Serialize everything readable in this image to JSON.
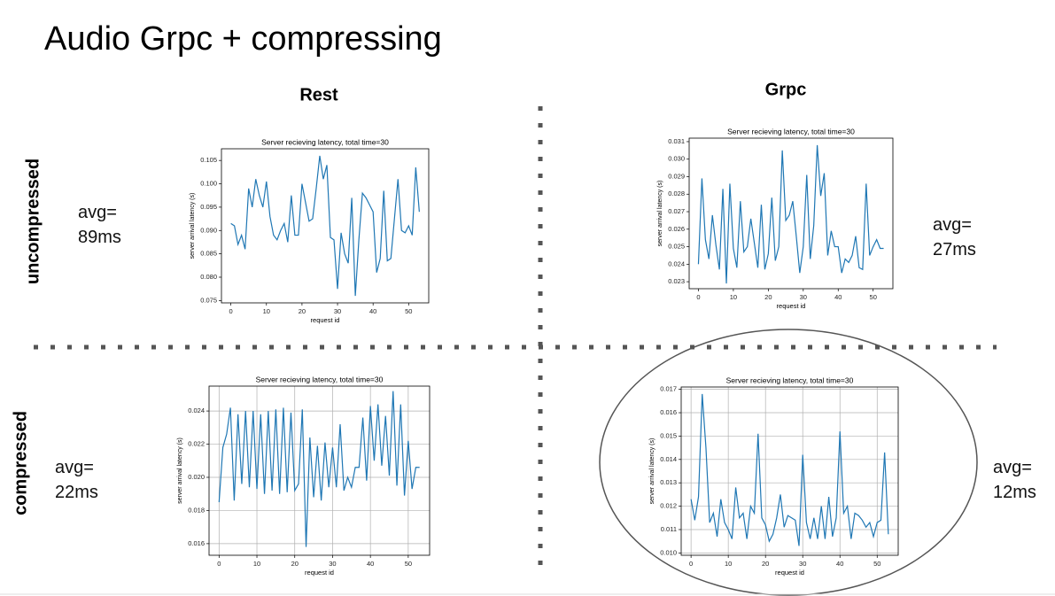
{
  "slide": {
    "title": "Audio Grpc + compressing",
    "columns": [
      "Rest",
      "Grpc"
    ],
    "rows": [
      "uncompressed",
      "compressed"
    ],
    "averages": [
      "avg= 89ms",
      "avg= 27ms",
      "avg= 22ms",
      "avg= 12ms"
    ]
  },
  "chart_data": [
    {
      "type": "line",
      "title": "Server recieving latency, total time=30",
      "xlabel": "request id",
      "ylabel": "server arrival latency (s)",
      "color": "#1f77b4",
      "grid": false,
      "x": [
        0,
        1,
        2,
        3,
        4,
        5,
        6,
        7,
        8,
        9,
        10,
        11,
        12,
        13,
        14,
        15,
        16,
        17,
        18,
        19,
        20,
        21,
        22,
        23,
        24,
        25,
        26,
        27,
        28,
        29,
        30,
        31,
        32,
        33,
        34,
        35,
        36,
        37,
        38,
        39,
        40,
        41,
        42,
        43,
        44,
        45,
        46,
        47,
        48,
        49,
        50,
        51,
        52,
        53
      ],
      "values": [
        0.0915,
        0.091,
        0.087,
        0.089,
        0.086,
        0.099,
        0.095,
        0.101,
        0.0975,
        0.095,
        0.1005,
        0.093,
        0.089,
        0.088,
        0.09,
        0.0915,
        0.0875,
        0.0975,
        0.089,
        0.089,
        0.1,
        0.096,
        0.092,
        0.0925,
        0.099,
        0.106,
        0.101,
        0.104,
        0.0885,
        0.088,
        0.0775,
        0.0895,
        0.085,
        0.083,
        0.097,
        0.076,
        0.088,
        0.098,
        0.097,
        0.0955,
        0.094,
        0.081,
        0.084,
        0.0985,
        0.0835,
        0.084,
        0.0925,
        0.101,
        0.09,
        0.0895,
        0.091,
        0.089,
        0.1035,
        0.094
      ],
      "xlim": [
        -2.65,
        55.65
      ],
      "xticks": [
        0,
        10,
        20,
        30,
        40,
        50
      ],
      "ylim": [
        0.0745,
        0.1075
      ],
      "yticks": [
        0.075,
        {
          "value": 0.08,
          "label": "0.080"
        },
        0.085,
        {
          "value": 0.09,
          "label": "0.090"
        },
        0.095,
        {
          "value": 0.1,
          "label": "0.100"
        },
        0.105
      ]
    },
    {
      "type": "line",
      "title": "Server recieving latency, total time=30",
      "xlabel": "request id",
      "ylabel": "server arrival latency (s)",
      "color": "#1f77b4",
      "grid": false,
      "x": [
        0,
        1,
        2,
        3,
        4,
        5,
        6,
        7,
        8,
        9,
        10,
        11,
        12,
        13,
        14,
        15,
        16,
        17,
        18,
        19,
        20,
        21,
        22,
        23,
        24,
        25,
        26,
        27,
        28,
        29,
        30,
        31,
        32,
        33,
        34,
        35,
        36,
        37,
        38,
        39,
        40,
        41,
        42,
        43,
        44,
        45,
        46,
        47,
        48,
        49,
        50,
        51,
        52,
        53
      ],
      "values": [
        0.024,
        0.0289,
        0.0254,
        0.0243,
        0.0268,
        0.0251,
        0.0237,
        0.0283,
        0.0229,
        0.0286,
        0.0249,
        0.0238,
        0.0276,
        0.0247,
        0.025,
        0.0266,
        0.0252,
        0.0238,
        0.0274,
        0.0237,
        0.0246,
        0.0278,
        0.0242,
        0.025,
        0.0305,
        0.0265,
        0.0268,
        0.0276,
        0.0256,
        0.0235,
        0.025,
        0.0291,
        0.0243,
        0.0262,
        0.0308,
        0.0279,
        0.0292,
        0.0245,
        0.0259,
        0.025,
        0.025,
        0.0235,
        0.0243,
        0.0241,
        0.0245,
        0.0256,
        0.0238,
        0.0237,
        0.0286,
        0.0245,
        0.025,
        0.0254,
        0.0249,
        0.0249
      ],
      "xlim": [
        -2.65,
        55.65
      ],
      "xticks": [
        0,
        10,
        20,
        30,
        40,
        50
      ],
      "ylim": [
        0.0226,
        0.0312
      ],
      "yticks": [
        0.023,
        0.024,
        0.025,
        0.026,
        0.027,
        0.028,
        0.029,
        {
          "value": 0.03,
          "label": "0.030"
        },
        0.031
      ]
    },
    {
      "type": "line",
      "title": "Server recieving latency, total time=30",
      "xlabel": "request id",
      "ylabel": "server arrival latency (s)",
      "color": "#1f77b4",
      "grid": true,
      "x": [
        0,
        1,
        2,
        3,
        4,
        5,
        6,
        7,
        8,
        9,
        10,
        11,
        12,
        13,
        14,
        15,
        16,
        17,
        18,
        19,
        20,
        21,
        22,
        23,
        24,
        25,
        26,
        27,
        28,
        29,
        30,
        31,
        32,
        33,
        34,
        35,
        36,
        37,
        38,
        39,
        40,
        41,
        42,
        43,
        44,
        45,
        46,
        47,
        48,
        49,
        50,
        51,
        52,
        53
      ],
      "values": [
        0.0185,
        0.0218,
        0.0226,
        0.0242,
        0.0186,
        0.0238,
        0.0196,
        0.024,
        0.0194,
        0.024,
        0.0193,
        0.0238,
        0.019,
        0.024,
        0.0192,
        0.0241,
        0.019,
        0.0242,
        0.0191,
        0.0239,
        0.0192,
        0.0196,
        0.0241,
        0.0158,
        0.0224,
        0.0188,
        0.0219,
        0.0186,
        0.0221,
        0.0194,
        0.0218,
        0.0194,
        0.0232,
        0.0192,
        0.02,
        0.0194,
        0.0206,
        0.0206,
        0.0236,
        0.0198,
        0.0243,
        0.021,
        0.0244,
        0.0207,
        0.0237,
        0.0201,
        0.0252,
        0.0195,
        0.0244,
        0.0189,
        0.0222,
        0.0193,
        0.0206,
        0.0206
      ],
      "xlim": [
        -2.65,
        55.65
      ],
      "xticks": [
        0,
        10,
        20,
        30,
        40,
        50
      ],
      "ylim": [
        0.0153,
        0.0255
      ],
      "yticks": [
        0.016,
        0.018,
        {
          "value": 0.02,
          "label": "0.020"
        },
        0.022,
        0.024
      ]
    },
    {
      "type": "line",
      "title": "Server recieving latency, total time=30",
      "xlabel": "request id",
      "ylabel": "server arrival latency (s)",
      "color": "#1f77b4",
      "grid": true,
      "x": [
        0,
        1,
        2,
        3,
        4,
        5,
        6,
        7,
        8,
        9,
        10,
        11,
        12,
        13,
        14,
        15,
        16,
        17,
        18,
        19,
        20,
        21,
        22,
        23,
        24,
        25,
        26,
        27,
        28,
        29,
        30,
        31,
        32,
        33,
        34,
        35,
        36,
        37,
        38,
        39,
        40,
        41,
        42,
        43,
        44,
        45,
        46,
        47,
        48,
        49,
        50,
        51,
        52,
        53
      ],
      "values": [
        0.0123,
        0.0114,
        0.0124,
        0.0168,
        0.0145,
        0.0113,
        0.0117,
        0.0107,
        0.0123,
        0.0113,
        0.011,
        0.0106,
        0.0128,
        0.0115,
        0.0117,
        0.0106,
        0.012,
        0.0117,
        0.0151,
        0.0115,
        0.0112,
        0.0105,
        0.0108,
        0.0115,
        0.0125,
        0.0111,
        0.0116,
        0.0115,
        0.0114,
        0.0103,
        0.0142,
        0.0113,
        0.0106,
        0.0115,
        0.0106,
        0.012,
        0.0106,
        0.0124,
        0.0107,
        0.0115,
        0.0152,
        0.0117,
        0.012,
        0.0106,
        0.0117,
        0.0116,
        0.0114,
        0.0111,
        0.0113,
        0.0107,
        0.0113,
        0.0114,
        0.0143,
        0.0108
      ],
      "xlim": [
        -2.65,
        55.65
      ],
      "xticks": [
        0,
        10,
        20,
        30,
        40,
        50
      ],
      "ylim": [
        0.0099,
        0.0171
      ],
      "yticks": [
        {
          "value": 0.01,
          "label": "0.010"
        },
        0.011,
        0.012,
        0.013,
        0.014,
        0.015,
        0.016,
        0.017
      ]
    }
  ]
}
